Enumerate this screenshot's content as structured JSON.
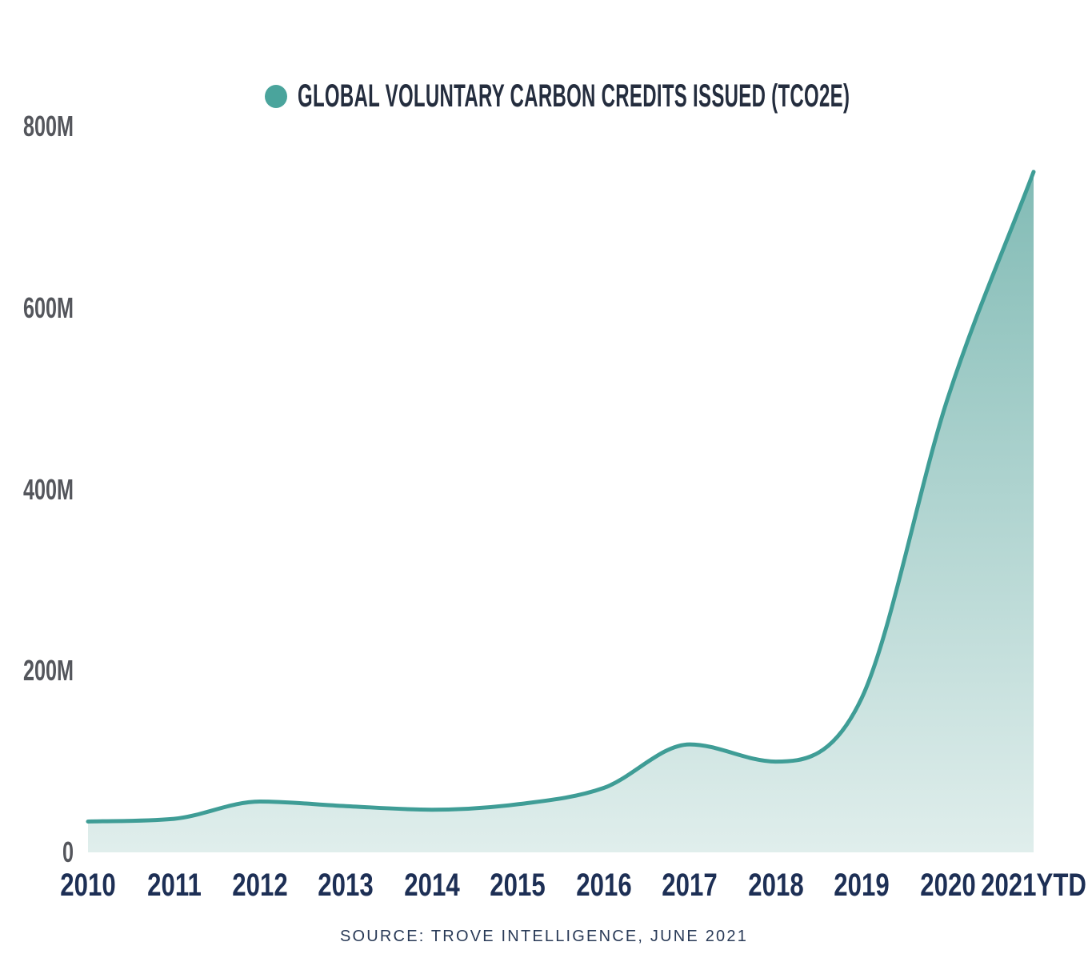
{
  "colors": {
    "line_color": "#3f9d96",
    "legend_dot": "#4aa49c",
    "fill_top": "#7cb8b2",
    "fill_bottom": "#e0eeec",
    "title_color": "#242d3e",
    "ytick_color": "#54565c",
    "xtick_color": "#1d2f55",
    "source_color": "#293a57"
  },
  "source_caption": "SOURCE: TROVE INTELLIGENCE, JUNE 2021",
  "chart_data": {
    "type": "area",
    "title": "GLOBAL VOLUNTARY CARBON CREDITS ISSUED (TCO2E)",
    "categories": [
      "2010",
      "2011",
      "2012",
      "2013",
      "2014",
      "2015",
      "2016",
      "2017",
      "2018",
      "2019",
      "2020",
      "2021YTD"
    ],
    "series": [
      {
        "name": "Global voluntary carbon credits issued (tCO2e)",
        "values": [
          34,
          37,
          56,
          51,
          47,
          53,
          71,
          119,
          100,
          170,
          500,
          750
        ]
      }
    ],
    "unit": "millions of tCO2e",
    "xlabel": "",
    "ylabel": "",
    "ylim": [
      0,
      800
    ],
    "yticks": [
      {
        "label": "800M",
        "value": 800
      },
      {
        "label": "600M",
        "value": 600
      },
      {
        "label": "400M",
        "value": 400
      },
      {
        "label": "200M",
        "value": 200
      },
      {
        "label": "0",
        "value": 0
      }
    ],
    "grid": false,
    "legend_position": "top-center",
    "source": "SOURCE: TROVE INTELLIGENCE, JUNE 2021"
  }
}
